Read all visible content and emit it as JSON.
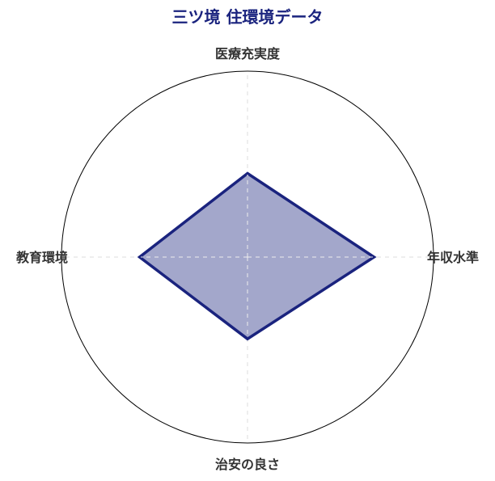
{
  "chart_data": {
    "type": "radar",
    "title": "三ツ境 住環境データ",
    "axes": [
      "医療充実度",
      "年収水準",
      "治安の良さ",
      "教育環境"
    ],
    "values": [
      45,
      68,
      44,
      58
    ],
    "range": [
      0,
      100
    ],
    "grid": true,
    "colors": {
      "line": "#1a237e",
      "fill": "#1a237e",
      "fill_opacity": 0.4,
      "title": "#1a237e"
    }
  }
}
